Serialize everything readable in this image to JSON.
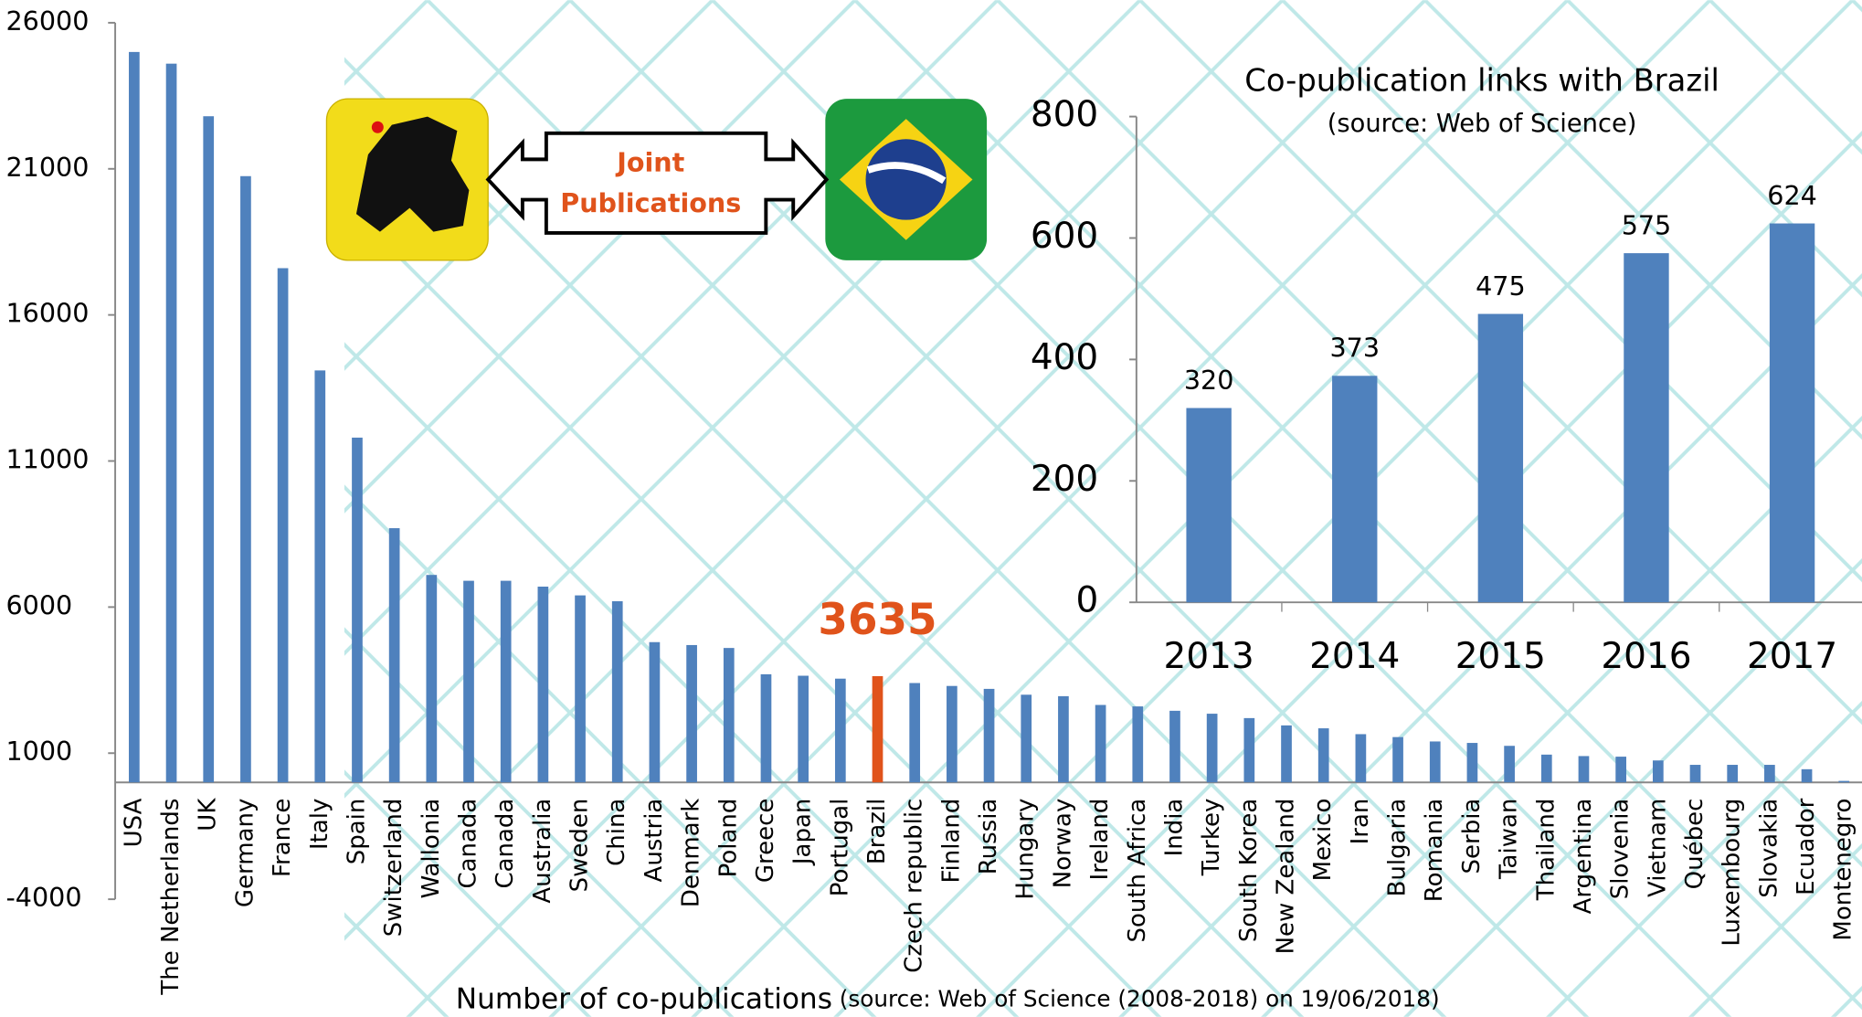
{
  "chart_data": [
    {
      "type": "bar",
      "x_label": "Number of co-publications",
      "x_label_note": "(source: Web of Science (2008-2018) on 19/06/2018)",
      "categories": [
        "USA",
        "The Netherlands",
        "UK",
        "Germany",
        "France",
        "Italy",
        "Spain",
        "Switzerland",
        "Wallonia",
        "Canada",
        "Canada",
        "Australia",
        "Sweden",
        "China",
        "Austria",
        "Denmark",
        "Poland",
        "Greece",
        "Japan",
        "Portugal",
        "Brazil",
        "Czech republic",
        "Finland",
        "Russia",
        "Hungary",
        "Norway",
        "Ireland",
        "South Africa",
        "India",
        "Turkey",
        "South Korea",
        "New Zealand",
        "Mexico",
        "Iran",
        "Bulgaria",
        "Romania",
        "Serbia",
        "Taiwan",
        "Thailand",
        "Argentina",
        "Slovenia",
        "Vietnam",
        "Québec",
        "Luxembourg",
        "Slovakia",
        "Ecuador",
        "Montenegro"
      ],
      "values": [
        25000,
        24600,
        22800,
        20750,
        17600,
        14100,
        11800,
        8700,
        7100,
        6900,
        6900,
        6700,
        6400,
        6200,
        4800,
        4700,
        4600,
        3700,
        3650,
        3550,
        3635,
        3400,
        3300,
        3200,
        3000,
        2950,
        2650,
        2600,
        2450,
        2350,
        2200,
        1950,
        1850,
        1650,
        1550,
        1400,
        1350,
        1250,
        950,
        900,
        880,
        750,
        600,
        600,
        600,
        450,
        50
      ],
      "value_labels": [
        null,
        null,
        null,
        null,
        null,
        null,
        null,
        null,
        null,
        null,
        null,
        null,
        null,
        null,
        null,
        null,
        null,
        null,
        null,
        null,
        "3635",
        null,
        null,
        null,
        null,
        null,
        null,
        null,
        null,
        null,
        null,
        null,
        null,
        null,
        null,
        null,
        null,
        null,
        null,
        null,
        null,
        null,
        null,
        null,
        null,
        null,
        null
      ],
      "colors": [
        "#4f81bd",
        "#4f81bd",
        "#4f81bd",
        "#4f81bd",
        "#4f81bd",
        "#4f81bd",
        "#4f81bd",
        "#4f81bd",
        "#4f81bd",
        "#4f81bd",
        "#4f81bd",
        "#4f81bd",
        "#4f81bd",
        "#4f81bd",
        "#4f81bd",
        "#4f81bd",
        "#4f81bd",
        "#4f81bd",
        "#4f81bd",
        "#4f81bd",
        "#e0531b",
        "#4f81bd",
        "#4f81bd",
        "#4f81bd",
        "#4f81bd",
        "#4f81bd",
        "#4f81bd",
        "#4f81bd",
        "#4f81bd",
        "#4f81bd",
        "#4f81bd",
        "#4f81bd",
        "#4f81bd",
        "#4f81bd",
        "#4f81bd",
        "#4f81bd",
        "#4f81bd",
        "#4f81bd",
        "#4f81bd",
        "#4f81bd",
        "#4f81bd",
        "#4f81bd",
        "#4f81bd",
        "#4f81bd",
        "#4f81bd",
        "#4f81bd",
        "#4f81bd"
      ],
      "ylim": [
        -4000,
        26000
      ],
      "yticks": [
        -4000,
        1000,
        6000,
        11000,
        16000,
        21000,
        26000
      ],
      "annotation": "Joint Publications"
    },
    {
      "type": "bar",
      "title": "Co-publication links with Brazil",
      "subtitle": "(source: Web of Science)",
      "categories": [
        "2013",
        "2014",
        "2015",
        "2016",
        "2017"
      ],
      "values": [
        320,
        373,
        475,
        575,
        624
      ],
      "color": "#4f81bd",
      "data_labels": true,
      "ylim": [
        0,
        800
      ],
      "yticks": [
        0,
        200,
        400,
        600,
        800
      ]
    }
  ]
}
